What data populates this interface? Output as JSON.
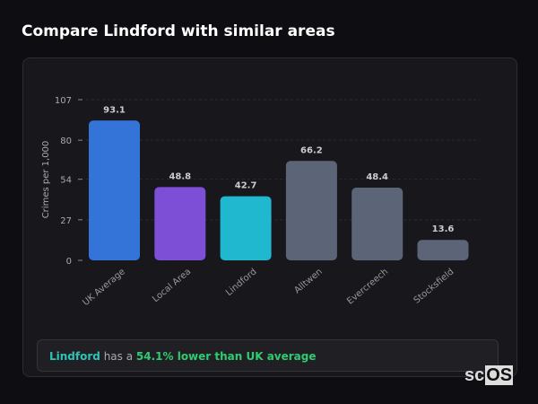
{
  "title": "Compare Lindford with similar areas",
  "chart_data": {
    "type": "bar",
    "title": "",
    "xlabel": "",
    "ylabel": "Crimes per 1,000",
    "ylim": [
      0,
      107
    ],
    "yticks": [
      0,
      27,
      54,
      80,
      107
    ],
    "grid": true,
    "categories": [
      "UK Average",
      "Local Area",
      "Lindford",
      "Alltwen",
      "Evercreech",
      "Stocksfield"
    ],
    "values": [
      93.1,
      48.8,
      42.7,
      66.2,
      48.4,
      13.6
    ],
    "colors": [
      "#3474d8",
      "#7c4fd6",
      "#1fb8cf",
      "#5c6577",
      "#5c6577",
      "#5c6577"
    ]
  },
  "note": {
    "area": "Lindford",
    "mid": " has a ",
    "result": "54.1% lower than UK average"
  },
  "logo": {
    "a": "sc",
    "b": "OS"
  }
}
